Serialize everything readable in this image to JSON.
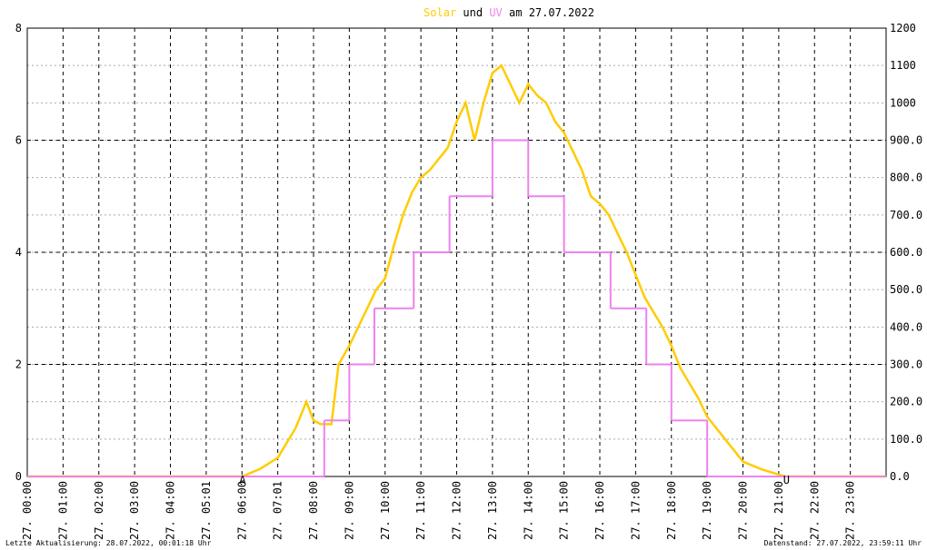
{
  "chart_data": {
    "type": "line",
    "title_joiner": "und",
    "title_suffix": "am 27.07.2022",
    "xlim": [
      0,
      24
    ],
    "xticks": [
      {
        "value": 0,
        "label": "27. 00:00"
      },
      {
        "value": 1,
        "label": "27. 01:00"
      },
      {
        "value": 2,
        "label": "27. 02:00"
      },
      {
        "value": 3,
        "label": "27. 03:00"
      },
      {
        "value": 4,
        "label": "27. 04:00"
      },
      {
        "value": 5,
        "label": "27. 05:01"
      },
      {
        "value": 6,
        "label": "27. 06:00"
      },
      {
        "value": 7,
        "label": "27. 07:01"
      },
      {
        "value": 8,
        "label": "27. 08:00"
      },
      {
        "value": 9,
        "label": "27. 09:00"
      },
      {
        "value": 10,
        "label": "27. 10:00"
      },
      {
        "value": 11,
        "label": "27. 11:00"
      },
      {
        "value": 12,
        "label": "27. 12:00"
      },
      {
        "value": 13,
        "label": "27. 13:00"
      },
      {
        "value": 14,
        "label": "27. 14:00"
      },
      {
        "value": 15,
        "label": "27. 15:00"
      },
      {
        "value": 16,
        "label": "27. 16:00"
      },
      {
        "value": 17,
        "label": "27. 17:00"
      },
      {
        "value": 18,
        "label": "27. 18:00"
      },
      {
        "value": 19,
        "label": "27. 19:00"
      },
      {
        "value": 20,
        "label": "27. 20:00"
      },
      {
        "value": 21,
        "label": "27. 21:00"
      },
      {
        "value": 22,
        "label": "27. 22:00"
      },
      {
        "value": 23,
        "label": "27. 23:00"
      }
    ],
    "ylim": [
      0,
      8
    ],
    "yticks": [
      0,
      2,
      4,
      6,
      8
    ],
    "y2lim": [
      0,
      1200
    ],
    "y2ticks": [
      {
        "value": 0,
        "label": "0.0"
      },
      {
        "value": 100,
        "label": "100.0"
      },
      {
        "value": 200,
        "label": "200.0"
      },
      {
        "value": 300,
        "label": "300.0"
      },
      {
        "value": 400,
        "label": "400.0"
      },
      {
        "value": 500,
        "label": "500.0"
      },
      {
        "value": 600,
        "label": "600.0"
      },
      {
        "value": 700,
        "label": "700.0"
      },
      {
        "value": 800,
        "label": "800.0"
      },
      {
        "value": 900,
        "label": "900.0"
      },
      1000,
      1100,
      1200
    ],
    "grid": true,
    "series": [
      {
        "name": "Solar",
        "color": "#ffcc00",
        "axis": "y2",
        "step": false,
        "x": [
          0,
          6,
          6.5,
          7,
          7.5,
          7.8,
          8,
          8.2,
          8.5,
          8.7,
          9,
          9.25,
          9.5,
          9.75,
          10,
          10.25,
          10.5,
          10.75,
          11,
          11.25,
          11.5,
          11.75,
          12,
          12.25,
          12.5,
          12.75,
          13,
          13.25,
          13.5,
          13.75,
          14,
          14.25,
          14.5,
          14.75,
          15,
          15.25,
          15.5,
          15.75,
          16,
          16.25,
          16.5,
          16.75,
          17,
          17.25,
          17.5,
          17.75,
          18,
          18.25,
          18.5,
          18.75,
          19,
          19.25,
          19.5,
          19.75,
          20,
          20.5,
          21,
          21.2,
          24
        ],
        "values": [
          0,
          0,
          20,
          50,
          130,
          200,
          150,
          140,
          140,
          300,
          350,
          400,
          450,
          500,
          530,
          620,
          700,
          760,
          800,
          820,
          850,
          880,
          950,
          1000,
          900,
          1000,
          1080,
          1100,
          1050,
          1000,
          1050,
          1020,
          1000,
          950,
          920,
          870,
          820,
          750,
          730,
          700,
          650,
          600,
          540,
          480,
          440,
          400,
          350,
          290,
          250,
          210,
          160,
          130,
          100,
          70,
          40,
          20,
          5,
          0,
          0
        ]
      },
      {
        "name": "UV",
        "color": "#ee82ee",
        "axis": "y",
        "step": true,
        "x": [
          0,
          8.3,
          9,
          9.7,
          10.8,
          11.8,
          13,
          14,
          15,
          16.3,
          17.3,
          18,
          19,
          24
        ],
        "values": [
          0,
          1,
          2,
          3,
          4,
          5,
          6,
          5,
          4,
          3,
          2,
          1,
          0,
          0
        ]
      }
    ],
    "markers": [
      {
        "x": 6,
        "label": "A"
      },
      {
        "x": 21.2,
        "label": "U"
      }
    ],
    "footer_left": "Letzte Aktualisierung: 28.07.2022, 00:01:18 Uhr",
    "footer_right": "Datenstand: 27.07.2022, 23:59:11 Uhr"
  }
}
